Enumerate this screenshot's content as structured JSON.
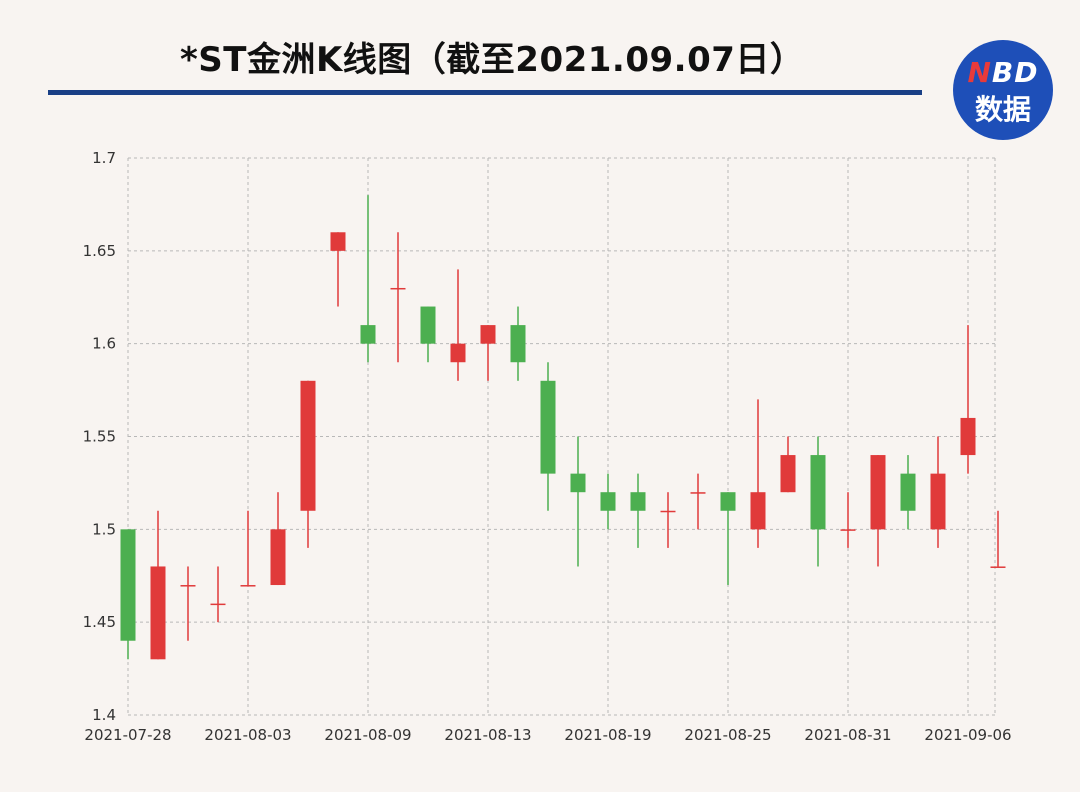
{
  "header": {
    "title": "*ST金洲K线图（截至2021.09.07日）",
    "logo_brand_n": "N",
    "logo_brand_rest": "BD",
    "logo_sub": "数据"
  },
  "chart_data": {
    "type": "candlestick",
    "title": "*ST金洲K线图（截至2021.09.07日）",
    "xlabel": "",
    "ylabel": "",
    "ylim": [
      1.4,
      1.7
    ],
    "y_ticks": [
      "1.7",
      "1.65",
      "1.6",
      "1.55",
      "1.5",
      "1.45",
      "1.4"
    ],
    "y_tick_values": [
      1.7,
      1.65,
      1.6,
      1.55,
      1.5,
      1.45,
      1.4
    ],
    "x_tick_labels": [
      "2021-07-28",
      "2021-08-03",
      "2021-08-09",
      "2021-08-13",
      "2021-08-19",
      "2021-08-25",
      "2021-08-31",
      "2021-09-06"
    ],
    "x_tick_index": [
      0,
      4,
      8,
      12,
      16,
      20,
      24,
      28
    ],
    "grid": true,
    "colors": {
      "up": "#e03a3a",
      "down": "#4caf50",
      "grid": "#b8b8b8"
    },
    "candles": [
      {
        "date": "2021-07-28",
        "open": 1.5,
        "close": 1.44,
        "high": 1.5,
        "low": 1.43
      },
      {
        "date": "2021-07-29",
        "open": 1.43,
        "close": 1.48,
        "high": 1.51,
        "low": 1.43
      },
      {
        "date": "2021-07-30",
        "open": 1.47,
        "close": 1.47,
        "high": 1.48,
        "low": 1.44
      },
      {
        "date": "2021-08-02",
        "open": 1.46,
        "close": 1.46,
        "high": 1.48,
        "low": 1.45
      },
      {
        "date": "2021-08-03",
        "open": 1.47,
        "close": 1.47,
        "high": 1.51,
        "low": 1.47
      },
      {
        "date": "2021-08-04",
        "open": 1.47,
        "close": 1.5,
        "high": 1.52,
        "low": 1.47
      },
      {
        "date": "2021-08-05",
        "open": 1.51,
        "close": 1.58,
        "high": 1.58,
        "low": 1.49
      },
      {
        "date": "2021-08-06",
        "open": 1.65,
        "close": 1.66,
        "high": 1.66,
        "low": 1.62
      },
      {
        "date": "2021-08-09",
        "open": 1.61,
        "close": 1.6,
        "high": 1.68,
        "low": 1.59
      },
      {
        "date": "2021-08-10",
        "open": 1.63,
        "close": 1.63,
        "high": 1.66,
        "low": 1.59
      },
      {
        "date": "2021-08-11",
        "open": 1.62,
        "close": 1.6,
        "high": 1.62,
        "low": 1.59
      },
      {
        "date": "2021-08-12",
        "open": 1.59,
        "close": 1.6,
        "high": 1.64,
        "low": 1.58
      },
      {
        "date": "2021-08-13",
        "open": 1.6,
        "close": 1.61,
        "high": 1.61,
        "low": 1.58
      },
      {
        "date": "2021-08-16",
        "open": 1.61,
        "close": 1.59,
        "high": 1.62,
        "low": 1.58
      },
      {
        "date": "2021-08-17",
        "open": 1.58,
        "close": 1.53,
        "high": 1.59,
        "low": 1.51
      },
      {
        "date": "2021-08-18",
        "open": 1.53,
        "close": 1.52,
        "high": 1.55,
        "low": 1.48
      },
      {
        "date": "2021-08-19",
        "open": 1.52,
        "close": 1.51,
        "high": 1.53,
        "low": 1.5
      },
      {
        "date": "2021-08-20",
        "open": 1.52,
        "close": 1.51,
        "high": 1.53,
        "low": 1.49
      },
      {
        "date": "2021-08-23",
        "open": 1.51,
        "close": 1.51,
        "high": 1.52,
        "low": 1.49
      },
      {
        "date": "2021-08-24",
        "open": 1.52,
        "close": 1.52,
        "high": 1.53,
        "low": 1.5
      },
      {
        "date": "2021-08-25",
        "open": 1.52,
        "close": 1.51,
        "high": 1.52,
        "low": 1.47
      },
      {
        "date": "2021-08-26",
        "open": 1.5,
        "close": 1.52,
        "high": 1.57,
        "low": 1.49
      },
      {
        "date": "2021-08-27",
        "open": 1.52,
        "close": 1.54,
        "high": 1.55,
        "low": 1.52
      },
      {
        "date": "2021-08-30",
        "open": 1.54,
        "close": 1.5,
        "high": 1.55,
        "low": 1.48
      },
      {
        "date": "2021-08-31",
        "open": 1.5,
        "close": 1.5,
        "high": 1.52,
        "low": 1.49
      },
      {
        "date": "2021-09-01",
        "open": 1.5,
        "close": 1.54,
        "high": 1.54,
        "low": 1.48
      },
      {
        "date": "2021-09-02",
        "open": 1.53,
        "close": 1.51,
        "high": 1.54,
        "low": 1.5
      },
      {
        "date": "2021-09-03",
        "open": 1.5,
        "close": 1.53,
        "high": 1.55,
        "low": 1.49
      },
      {
        "date": "2021-09-06",
        "open": 1.54,
        "close": 1.56,
        "high": 1.61,
        "low": 1.53
      },
      {
        "date": "2021-09-07",
        "open": 1.48,
        "close": 1.48,
        "high": 1.51,
        "low": 1.48
      }
    ]
  }
}
